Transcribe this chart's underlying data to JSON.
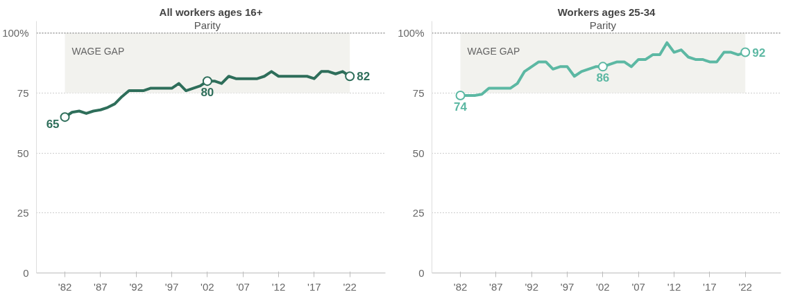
{
  "chart_data": [
    {
      "type": "line",
      "title": "All workers ages 16+",
      "x": [
        1982,
        1983,
        1984,
        1985,
        1986,
        1987,
        1988,
        1989,
        1990,
        1991,
        1992,
        1993,
        1994,
        1995,
        1996,
        1997,
        1998,
        1999,
        2000,
        2001,
        2002,
        2003,
        2004,
        2005,
        2006,
        2007,
        2008,
        2009,
        2010,
        2011,
        2012,
        2013,
        2014,
        2015,
        2016,
        2017,
        2018,
        2019,
        2020,
        2021,
        2022
      ],
      "series": [
        {
          "color": "#2e6e5a",
          "values": [
            65,
            67,
            67.5,
            66.5,
            67.5,
            68,
            69,
            70.5,
            73.5,
            76,
            76,
            76,
            77,
            77,
            77,
            77,
            79,
            76,
            77,
            78,
            80,
            80,
            79,
            82,
            81,
            81,
            81,
            81,
            82,
            84,
            82,
            82,
            82,
            82,
            82,
            81,
            84,
            84,
            83,
            84,
            82
          ],
          "value_labels": [
            "65",
            null,
            null,
            null,
            null,
            null,
            null,
            null,
            null,
            null,
            null,
            null,
            null,
            null,
            null,
            null,
            null,
            null,
            null,
            null,
            "80",
            null,
            null,
            null,
            null,
            null,
            null,
            null,
            null,
            null,
            null,
            null,
            null,
            null,
            null,
            null,
            null,
            null,
            null,
            null,
            "82"
          ]
        }
      ],
      "ref_lines": [
        {
          "axis": "y",
          "value": 100,
          "label": "Parity"
        }
      ],
      "bands": [
        {
          "axis": "y",
          "from": 75,
          "to": 100,
          "label": "WAGE GAP",
          "color": "#f2f2ee"
        }
      ],
      "xlim": [
        1978,
        2027
      ],
      "ylim": [
        0,
        105
      ],
      "xticks": [
        {
          "value": 1982,
          "label": "'82"
        },
        {
          "value": 1987,
          "label": "'87"
        },
        {
          "value": 1992,
          "label": "'92"
        },
        {
          "value": 1997,
          "label": "'97"
        },
        {
          "value": 2002,
          "label": "'02"
        },
        {
          "value": 2007,
          "label": "'07"
        },
        {
          "value": 2012,
          "label": "'12"
        },
        {
          "value": 2017,
          "label": "'17"
        },
        {
          "value": 2022,
          "label": "'22"
        }
      ],
      "yticks": [
        0,
        25,
        50,
        75,
        {
          "value": 100,
          "label": "100%"
        }
      ],
      "grid": "y",
      "marker": "none",
      "line_style": "solid"
    },
    {
      "type": "line",
      "title": "Workers ages 25-34",
      "x": [
        1982,
        1983,
        1984,
        1985,
        1986,
        1987,
        1988,
        1989,
        1990,
        1991,
        1992,
        1993,
        1994,
        1995,
        1996,
        1997,
        1998,
        1999,
        2000,
        2001,
        2002,
        2003,
        2004,
        2005,
        2006,
        2007,
        2008,
        2009,
        2010,
        2011,
        2012,
        2013,
        2014,
        2015,
        2016,
        2017,
        2018,
        2019,
        2020,
        2021,
        2022
      ],
      "series": [
        {
          "color": "#5cb8a3",
          "values": [
            74,
            74,
            74,
            74.5,
            77,
            77,
            77,
            77,
            79,
            84,
            86,
            88,
            88,
            85,
            86,
            86,
            82,
            84,
            85,
            86,
            86,
            87,
            88,
            88,
            86,
            89,
            89,
            91,
            91,
            96,
            92,
            93,
            90,
            89,
            89,
            88,
            88,
            92,
            92,
            91,
            92
          ],
          "value_labels": [
            "74",
            null,
            null,
            null,
            null,
            null,
            null,
            null,
            null,
            null,
            null,
            null,
            null,
            null,
            null,
            null,
            null,
            null,
            null,
            null,
            "86",
            null,
            null,
            null,
            null,
            null,
            null,
            null,
            null,
            null,
            null,
            null,
            null,
            null,
            null,
            null,
            null,
            null,
            null,
            null,
            "92"
          ]
        }
      ],
      "ref_lines": [
        {
          "axis": "y",
          "value": 100,
          "label": "Parity"
        }
      ],
      "bands": [
        {
          "axis": "y",
          "from": 75,
          "to": 100,
          "label": "WAGE GAP",
          "color": "#f2f2ee"
        }
      ],
      "xlim": [
        1978,
        2027
      ],
      "ylim": [
        0,
        105
      ],
      "xticks": [
        {
          "value": 1982,
          "label": "'82"
        },
        {
          "value": 1987,
          "label": "'87"
        },
        {
          "value": 1992,
          "label": "'92"
        },
        {
          "value": 1997,
          "label": "'97"
        },
        {
          "value": 2002,
          "label": "'02"
        },
        {
          "value": 2007,
          "label": "'07"
        },
        {
          "value": 2012,
          "label": "'12"
        },
        {
          "value": 2017,
          "label": "'17"
        },
        {
          "value": 2022,
          "label": "'22"
        }
      ],
      "yticks": [
        0,
        25,
        50,
        75,
        {
          "value": 100,
          "label": "100%"
        }
      ],
      "grid": "y",
      "marker": "none",
      "line_style": "solid"
    }
  ]
}
